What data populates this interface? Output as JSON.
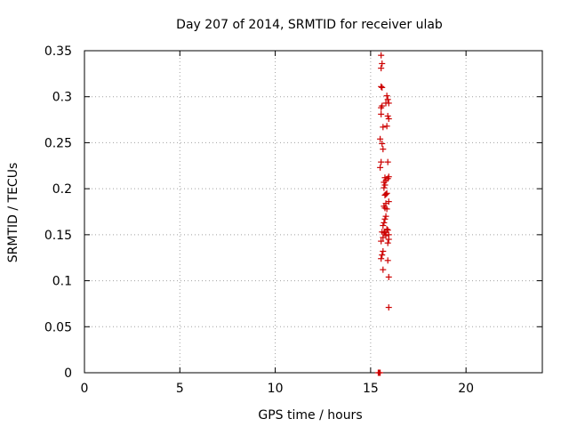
{
  "chart_data": {
    "type": "scatter",
    "title": "Day 207 of 2014, SRMTID for receiver ulab",
    "xlabel": "GPS time / hours",
    "ylabel": "SRMTID / TECUs",
    "xlim": [
      0,
      24
    ],
    "ylim": [
      0,
      0.35
    ],
    "xticks": [
      0,
      5,
      10,
      15,
      20
    ],
    "yticks": [
      0,
      0.05,
      0.1,
      0.15,
      0.2,
      0.25,
      0.3,
      0.35
    ],
    "xtick_labels": [
      "0",
      "5",
      "10",
      "15",
      "20"
    ],
    "ytick_labels": [
      "0",
      "0.05",
      "0.1",
      "0.15",
      "0.2",
      "0.25",
      "0.3",
      "0.35"
    ],
    "grid": true,
    "marker": "+",
    "marker_color": "#cc0000",
    "series": [
      {
        "name": "SRMTID",
        "points": [
          [
            15.55,
            0.345
          ],
          [
            15.6,
            0.336
          ],
          [
            15.55,
            0.331
          ],
          [
            15.55,
            0.311
          ],
          [
            15.6,
            0.31
          ],
          [
            15.85,
            0.301
          ],
          [
            15.9,
            0.297
          ],
          [
            15.8,
            0.293
          ],
          [
            15.95,
            0.293
          ],
          [
            15.6,
            0.29
          ],
          [
            15.55,
            0.288
          ],
          [
            15.55,
            0.281
          ],
          [
            15.9,
            0.279
          ],
          [
            15.95,
            0.276
          ],
          [
            15.85,
            0.268
          ],
          [
            15.65,
            0.267
          ],
          [
            15.5,
            0.254
          ],
          [
            15.6,
            0.249
          ],
          [
            15.65,
            0.243
          ],
          [
            15.9,
            0.229
          ],
          [
            15.55,
            0.229
          ],
          [
            15.5,
            0.223
          ],
          [
            15.95,
            0.213
          ],
          [
            15.75,
            0.212
          ],
          [
            15.9,
            0.211
          ],
          [
            15.8,
            0.209
          ],
          [
            15.7,
            0.207
          ],
          [
            15.75,
            0.204
          ],
          [
            15.7,
            0.201
          ],
          [
            15.85,
            0.195
          ],
          [
            15.8,
            0.194
          ],
          [
            15.75,
            0.193
          ],
          [
            15.95,
            0.186
          ],
          [
            15.8,
            0.184
          ],
          [
            15.7,
            0.181
          ],
          [
            15.75,
            0.179
          ],
          [
            15.85,
            0.178
          ],
          [
            15.8,
            0.17
          ],
          [
            15.75,
            0.167
          ],
          [
            15.7,
            0.163
          ],
          [
            15.65,
            0.16
          ],
          [
            15.85,
            0.156
          ],
          [
            15.9,
            0.155
          ],
          [
            15.75,
            0.153
          ],
          [
            15.6,
            0.153
          ],
          [
            15.7,
            0.152
          ],
          [
            15.95,
            0.15
          ],
          [
            15.8,
            0.149
          ],
          [
            15.65,
            0.147
          ],
          [
            15.95,
            0.145
          ],
          [
            15.55,
            0.143
          ],
          [
            15.9,
            0.141
          ],
          [
            15.65,
            0.132
          ],
          [
            15.6,
            0.128
          ],
          [
            15.55,
            0.124
          ],
          [
            15.9,
            0.122
          ],
          [
            15.65,
            0.112
          ],
          [
            15.95,
            0.104
          ],
          [
            15.95,
            0.071
          ],
          [
            15.4,
            0.0
          ],
          [
            15.45,
            0.0
          ],
          [
            15.5,
            0.0
          ]
        ]
      }
    ]
  }
}
